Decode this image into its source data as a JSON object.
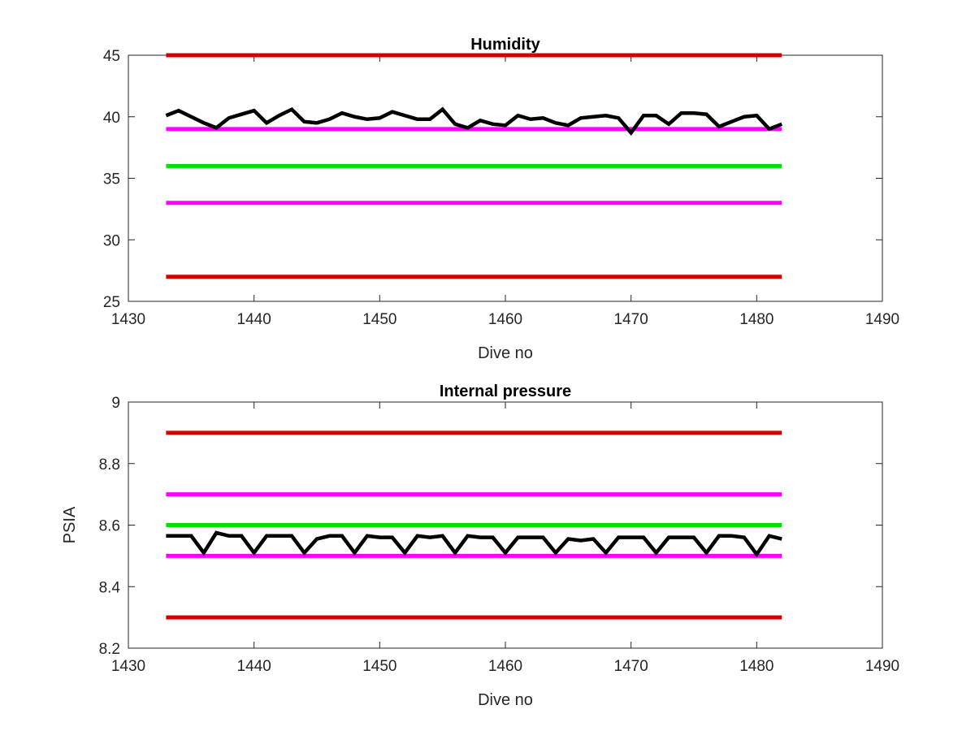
{
  "chart_data": [
    {
      "type": "line",
      "title": "Humidity",
      "xlabel": "Dive no",
      "ylabel": "",
      "xlim": [
        1430,
        1490
      ],
      "ylim": [
        25,
        45
      ],
      "xticks": [
        1430,
        1440,
        1450,
        1460,
        1470,
        1480,
        1490
      ],
      "yticks": [
        25,
        30,
        35,
        40,
        45
      ],
      "grid": false,
      "thresholds": [
        {
          "y": 45,
          "x": [
            1433,
            1482
          ],
          "color": "#d40000"
        },
        {
          "y": 39,
          "x": [
            1433,
            1482
          ],
          "color": "#ff00ff"
        },
        {
          "y": 36,
          "x": [
            1433,
            1482
          ],
          "color": "#00e000"
        },
        {
          "y": 33,
          "x": [
            1433,
            1482
          ],
          "color": "#ff00ff"
        },
        {
          "y": 27,
          "x": [
            1433,
            1482
          ],
          "color": "#d40000"
        }
      ],
      "series": [
        {
          "color": "#000000",
          "x": [
            1433,
            1434,
            1435,
            1436,
            1437,
            1438,
            1439,
            1440,
            1441,
            1442,
            1443,
            1444,
            1445,
            1446,
            1447,
            1448,
            1449,
            1450,
            1451,
            1452,
            1453,
            1454,
            1455,
            1456,
            1457,
            1458,
            1459,
            1460,
            1461,
            1462,
            1463,
            1464,
            1465,
            1466,
            1467,
            1468,
            1469,
            1470,
            1471,
            1472,
            1473,
            1474,
            1475,
            1476,
            1477,
            1478,
            1479,
            1480,
            1481,
            1482
          ],
          "values": [
            40.1,
            40.5,
            40.0,
            39.5,
            39.1,
            39.9,
            40.2,
            40.5,
            39.5,
            40.1,
            40.6,
            39.6,
            39.5,
            39.8,
            40.3,
            40.0,
            39.8,
            39.9,
            40.4,
            40.1,
            39.8,
            39.8,
            40.6,
            39.4,
            39.1,
            39.7,
            39.4,
            39.3,
            40.1,
            39.8,
            39.9,
            39.5,
            39.3,
            39.9,
            40.0,
            40.1,
            39.9,
            38.7,
            40.1,
            40.1,
            39.4,
            40.3,
            40.3,
            40.2,
            39.2,
            39.6,
            40.0,
            40.1,
            39.0,
            39.4
          ]
        }
      ]
    },
    {
      "type": "line",
      "title": "Internal pressure",
      "xlabel": "Dive no",
      "ylabel": "PSIA",
      "xlim": [
        1430,
        1490
      ],
      "ylim": [
        8.2,
        9
      ],
      "xticks": [
        1430,
        1440,
        1450,
        1460,
        1470,
        1480,
        1490
      ],
      "yticks": [
        8.2,
        8.4,
        8.6,
        8.8,
        9
      ],
      "grid": false,
      "thresholds": [
        {
          "y": 8.9,
          "x": [
            1433,
            1482
          ],
          "color": "#d40000"
        },
        {
          "y": 8.7,
          "x": [
            1433,
            1482
          ],
          "color": "#ff00ff"
        },
        {
          "y": 8.6,
          "x": [
            1433,
            1482
          ],
          "color": "#00e000"
        },
        {
          "y": 8.5,
          "x": [
            1433,
            1482
          ],
          "color": "#ff00ff"
        },
        {
          "y": 8.3,
          "x": [
            1433,
            1482
          ],
          "color": "#d40000"
        }
      ],
      "series": [
        {
          "color": "#000000",
          "x": [
            1433,
            1434,
            1435,
            1436,
            1437,
            1438,
            1439,
            1440,
            1441,
            1442,
            1443,
            1444,
            1445,
            1446,
            1447,
            1448,
            1449,
            1450,
            1451,
            1452,
            1453,
            1454,
            1455,
            1456,
            1457,
            1458,
            1459,
            1460,
            1461,
            1462,
            1463,
            1464,
            1465,
            1466,
            1467,
            1468,
            1469,
            1470,
            1471,
            1472,
            1473,
            1474,
            1475,
            1476,
            1477,
            1478,
            1479,
            1480,
            1481,
            1482
          ],
          "values": [
            8.565,
            8.565,
            8.565,
            8.51,
            8.575,
            8.565,
            8.565,
            8.51,
            8.565,
            8.565,
            8.565,
            8.51,
            8.555,
            8.565,
            8.565,
            8.51,
            8.565,
            8.56,
            8.56,
            8.51,
            8.565,
            8.56,
            8.565,
            8.51,
            8.565,
            8.56,
            8.56,
            8.51,
            8.56,
            8.56,
            8.56,
            8.51,
            8.555,
            8.55,
            8.555,
            8.51,
            8.56,
            8.56,
            8.56,
            8.51,
            8.56,
            8.56,
            8.56,
            8.51,
            8.565,
            8.565,
            8.56,
            8.505,
            8.565,
            8.555
          ]
        }
      ]
    }
  ]
}
